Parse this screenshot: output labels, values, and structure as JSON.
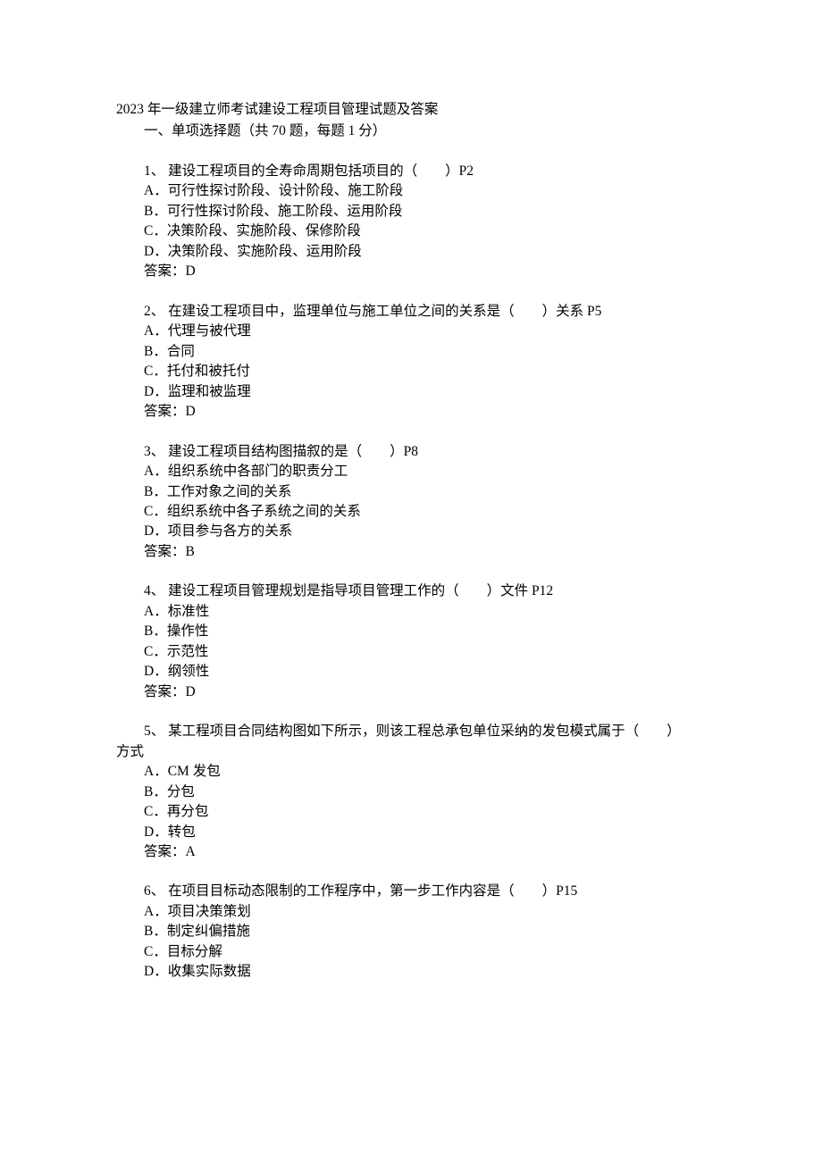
{
  "title": "2023 年一级建立师考试建设工程项目管理试题及答案",
  "section_header": "一、单项选择题（共 70 题，每题 1 分）",
  "questions": [
    {
      "number": "1、",
      "stem": "建设工程项目的全寿命周期包括项目的（　　）P2",
      "options": [
        "A．可行性探讨阶段、设计阶段、施工阶段",
        "B．可行性探讨阶段、施工阶段、运用阶段",
        "C．决策阶段、实施阶段、保修阶段",
        "D．决策阶段、实施阶段、运用阶段"
      ],
      "answer": "答案：D"
    },
    {
      "number": "2、",
      "stem": "在建设工程项目中，监理单位与施工单位之间的关系是（　　）关系 P5",
      "options": [
        "A．代理与被代理",
        "B．合同",
        "C．托付和被托付",
        "D．监理和被监理"
      ],
      "answer": "答案：D"
    },
    {
      "number": "3、",
      "stem": "建设工程项目结构图描叙的是（　　）P8",
      "options": [
        "A．组织系统中各部门的职责分工",
        "B．工作对象之间的关系",
        "C．组织系统中各子系统之间的关系",
        "D．项目参与各方的关系"
      ],
      "answer": "答案：B"
    },
    {
      "number": "4、",
      "stem": "建设工程项目管理规划是指导项目管理工作的（　　）文件 P12",
      "options": [
        "A．标准性",
        "B．操作性",
        "C．示范性",
        "D．纲领性"
      ],
      "answer": "答案：D"
    },
    {
      "number": "5、",
      "stem": "某工程项目合同结构图如下所示，则该工程总承包单位采纳的发包模式属于（　　）",
      "continuation": "方式",
      "options": [
        "A．CM 发包",
        "B．分包",
        "C．再分包",
        "D．转包"
      ],
      "answer": "答案：A"
    },
    {
      "number": "6、",
      "stem": "在项目目标动态限制的工作程序中，第一步工作内容是（　　）P15",
      "options": [
        "A．项目决策策划",
        "B．制定纠偏措施",
        "C．目标分解",
        "D．收集实际数据"
      ],
      "answer": ""
    }
  ]
}
